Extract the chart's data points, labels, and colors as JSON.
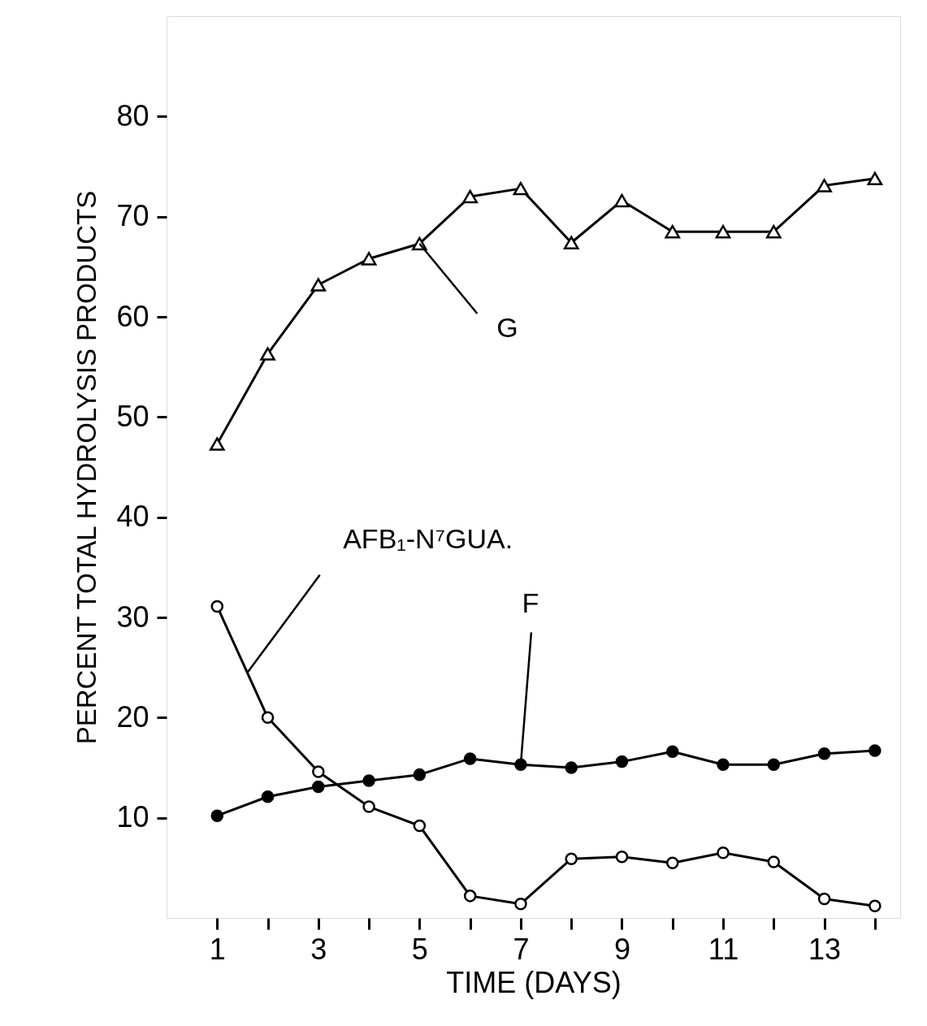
{
  "chart_data": {
    "type": "line",
    "xlabel": "TIME (DAYS)",
    "ylabel": "PERCENT TOTAL HYDROLYSIS PRODUCTS",
    "x": [
      1,
      2,
      3,
      4,
      5,
      6,
      7,
      8,
      9,
      10,
      11,
      12,
      13,
      14
    ],
    "series": [
      {
        "color": "#000000",
        "marker": "triangle",
        "values": [
          47.3,
          56.3,
          63.2,
          65.8,
          67.3,
          72.0,
          72.8,
          67.4,
          71.6,
          68.5,
          68.5,
          68.5,
          73.1,
          73.8
        ]
      },
      {
        "color": "#000000",
        "marker": "circle",
        "values": [
          10.2,
          12.1,
          13.1,
          13.7,
          14.3,
          15.9,
          15.3,
          15.0,
          15.6,
          16.6,
          15.3,
          15.3,
          16.4,
          16.7
        ]
      },
      {
        "color": "#000000",
        "marker": "circle",
        "values": [
          31.1,
          20.0,
          14.6,
          11.1,
          9.2,
          2.2,
          1.4,
          5.9,
          6.1,
          5.5,
          6.5,
          5.6,
          1.9,
          1.2
        ]
      }
    ],
    "xlim": [
      0,
      14.5
    ],
    "ylim": [
      0,
      90
    ],
    "xticks": [
      1,
      {
        "value": 2,
        "label": null
      },
      3,
      {
        "value": 4,
        "label": null
      },
      5,
      {
        "value": 6,
        "label": null
      },
      7,
      {
        "value": 8,
        "label": null
      },
      9,
      {
        "value": 10,
        "label": null
      },
      11,
      {
        "value": 12,
        "label": null
      },
      13,
      {
        "value": 14,
        "label": null
      }
    ],
    "yticks": [
      10,
      20,
      30,
      40,
      50,
      60,
      70,
      80
    ],
    "line_style": "solid",
    "annotations": [
      {
        "text": "G",
        "x": 5,
        "y": 67.3
      },
      {
        "text": "F",
        "x": 7,
        "y": 15.3
      },
      {
        "text": "AFB₁-N⁷GUA.",
        "x": 1.6,
        "y": 24.5
      }
    ]
  }
}
